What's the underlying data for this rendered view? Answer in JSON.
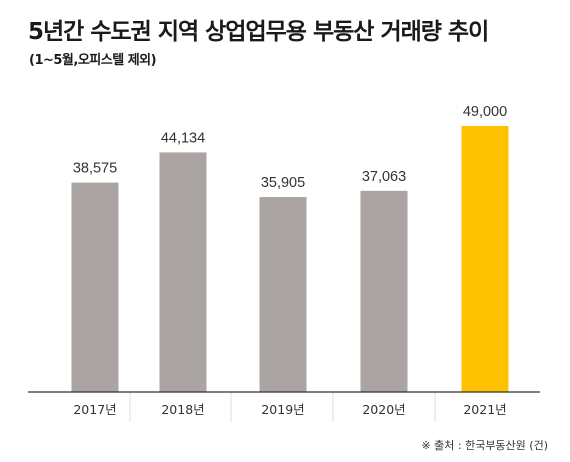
{
  "title": "5년간 수도권 지역 상업업무용 부동산 거래량 추이",
  "subtitle": "(1~5월,오피스텔 제외)",
  "source": "※ 출처 : 한국부동산원 (건)",
  "colors": {
    "default_bar": "#aaa5a2",
    "highlight_bar": "#fec200",
    "axis": "#333333",
    "separator": "#dddddd"
  },
  "chart_data": {
    "type": "bar",
    "title": "5년간 수도권 지역 상업업무용 부동산 거래량 추이",
    "subtitle": "(1~5월,오피스텔 제외)",
    "xlabel": "",
    "ylabel": "",
    "unit": "건",
    "categories": [
      "2017년",
      "2018년",
      "2019년",
      "2020년",
      "2021년"
    ],
    "values": [
      38575,
      44134,
      35905,
      37063,
      49000
    ],
    "value_labels": [
      "38,575",
      "44,134",
      "35,905",
      "37,063",
      "49,000"
    ],
    "highlight_index": 4,
    "ylim": [
      0,
      60000
    ],
    "grid": false,
    "legend": "none"
  }
}
